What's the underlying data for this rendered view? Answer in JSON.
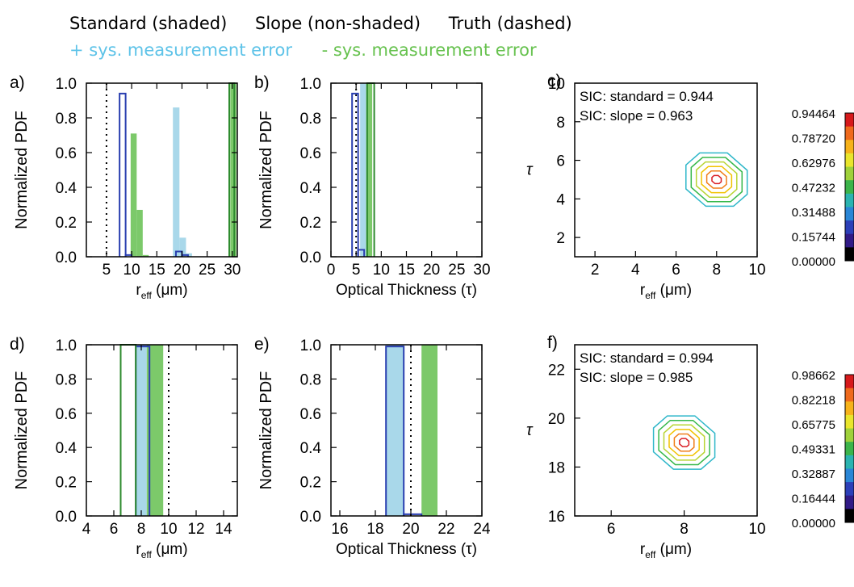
{
  "legend": {
    "standard": "Standard (shaded)",
    "slope": "Slope (non-shaded)",
    "truth": "Truth (dashed)",
    "plus_error": "+ sys. measurement error",
    "minus_error": "- sys. measurement error"
  },
  "colors": {
    "plus_error": "#a9d8ea",
    "minus_error": "#7cc96a",
    "slope_outline_plus": "#2a3fb0",
    "slope_outline_minus": "#2e8b2e",
    "truth": "#000000"
  },
  "chart_data": [
    {
      "panel": "a)",
      "type": "bar",
      "xlabel": "r_eff (μm)",
      "ylabel": "Normalized PDF",
      "xlim": [
        1,
        31
      ],
      "ylim": [
        0,
        1.0
      ],
      "xticks": [
        5,
        10,
        15,
        20,
        25,
        30
      ],
      "yticks": [
        0.0,
        0.2,
        0.4,
        0.6,
        0.8,
        1.0
      ],
      "ytick_labels": [
        "0.0",
        "0.2",
        "0.4",
        "0.6",
        "0.8",
        "1.0"
      ],
      "truth": 5,
      "series": [
        {
          "name": "+ sys. measurement error",
          "style": "shaded",
          "color": "#a9d8ea",
          "bars": [
            [
              18.2,
              19.5,
              0.86
            ],
            [
              19.5,
              20.8,
              0.11
            ],
            [
              20.8,
              22.0,
              0.02
            ]
          ]
        },
        {
          "name": "- sys. measurement error",
          "style": "shaded",
          "color": "#7cc96a",
          "bars": [
            [
              9.8,
              11.0,
              0.71
            ],
            [
              11.0,
              12.2,
              0.27
            ],
            [
              12.2,
              13.4,
              0.01
            ],
            [
              29.6,
              30.8,
              1.0
            ]
          ]
        },
        {
          "name": "+ sys. measurement error",
          "style": "outline",
          "color": "#2a3fb0",
          "bars": [
            [
              7.6,
              8.8,
              0.94
            ],
            [
              8.8,
              10.0,
              0.01
            ],
            [
              18.8,
              20.0,
              0.03
            ],
            [
              20.0,
              21.2,
              0.01
            ]
          ]
        },
        {
          "name": "- sys. measurement error",
          "style": "outline",
          "color": "#2e8b2e",
          "bars": [
            [
              29.4,
              30.4,
              1.0
            ]
          ]
        }
      ]
    },
    {
      "panel": "b)",
      "type": "bar",
      "xlabel": "Optical Thickness (τ)",
      "ylabel": "Normalized PDF",
      "xlim": [
        0,
        30
      ],
      "ylim": [
        0,
        1.0
      ],
      "xticks": [
        0,
        5,
        10,
        15,
        20,
        25,
        30
      ],
      "yticks": [
        0.0,
        0.2,
        0.4,
        0.6,
        0.8,
        1.0
      ],
      "ytick_labels": [
        "0.0",
        "0.2",
        "0.4",
        "0.6",
        "0.8",
        "1.0"
      ],
      "truth": 5,
      "series": [
        {
          "name": "+ sys. measurement error",
          "style": "shaded",
          "color": "#a9d8ea",
          "bars": [
            [
              5.8,
              7.0,
              1.0
            ]
          ]
        },
        {
          "name": "- sys. measurement error",
          "style": "shaded",
          "color": "#7cc96a",
          "bars": [
            [
              7.0,
              8.2,
              1.0
            ]
          ]
        },
        {
          "name": "+ sys. measurement error",
          "style": "outline",
          "color": "#2a3fb0",
          "bars": [
            [
              4.2,
              5.4,
              0.94
            ],
            [
              5.4,
              6.6,
              0.04
            ]
          ]
        },
        {
          "name": "- sys. measurement error",
          "style": "outline",
          "color": "#2e8b2e",
          "bars": [
            [
              7.2,
              8.6,
              1.0
            ]
          ]
        }
      ]
    },
    {
      "panel": "c)",
      "type": "contour",
      "xlabel": "r_eff (μm)",
      "ylabel": "τ",
      "xlim": [
        1,
        10
      ],
      "ylim": [
        1,
        10
      ],
      "xticks": [
        2,
        4,
        6,
        8,
        10
      ],
      "yticks": [
        2,
        4,
        6,
        8,
        10
      ],
      "center": [
        8,
        5
      ],
      "annotations": [
        "SIC: standard = 0.944",
        "SIC: slope = 0.963"
      ],
      "colorbar": [
        "0.94464",
        "0.78720",
        "0.62976",
        "0.47232",
        "0.31488",
        "0.15744",
        "0.00000"
      ]
    },
    {
      "panel": "d)",
      "type": "bar",
      "xlabel": "r_eff (μm)",
      "ylabel": "Normalized PDF",
      "xlim": [
        4,
        15
      ],
      "ylim": [
        0,
        1.0
      ],
      "xticks": [
        4,
        6,
        8,
        10,
        12,
        14
      ],
      "yticks": [
        0.0,
        0.2,
        0.4,
        0.6,
        0.8,
        1.0
      ],
      "ytick_labels": [
        "0.0",
        "0.2",
        "0.4",
        "0.6",
        "0.8",
        "1.0"
      ],
      "truth": 10,
      "series": [
        {
          "name": "+ sys. measurement error",
          "style": "shaded",
          "color": "#a9d8ea",
          "bars": [
            [
              7.6,
              8.4,
              1.0
            ]
          ]
        },
        {
          "name": "- sys. measurement error",
          "style": "shaded",
          "color": "#7cc96a",
          "bars": [
            [
              8.4,
              9.6,
              1.0
            ]
          ]
        },
        {
          "name": "+ sys. measurement error",
          "style": "outline",
          "color": "#2a3fb0",
          "bars": [
            [
              7.6,
              8.6,
              0.99
            ]
          ]
        },
        {
          "name": "- sys. measurement error",
          "style": "outline",
          "color": "#2e8b2e",
          "bars": [
            [
              6.5,
              7.6,
              1.0
            ]
          ]
        }
      ]
    },
    {
      "panel": "e)",
      "type": "bar",
      "xlabel": "Optical Thickness (τ)",
      "ylabel": "Normalized PDF",
      "xlim": [
        15.5,
        24
      ],
      "ylim": [
        0,
        1.0
      ],
      "xticks": [
        16,
        18,
        20,
        22,
        24
      ],
      "yticks": [
        0.0,
        0.2,
        0.4,
        0.6,
        0.8,
        1.0
      ],
      "ytick_labels": [
        "0.0",
        "0.2",
        "0.4",
        "0.6",
        "0.8",
        "1.0"
      ],
      "truth": 20,
      "series": [
        {
          "name": "+ sys. measurement error",
          "style": "shaded",
          "color": "#a9d8ea",
          "bars": [
            [
              18.6,
              19.6,
              1.0
            ]
          ]
        },
        {
          "name": "- sys. measurement error",
          "style": "shaded",
          "color": "#7cc96a",
          "bars": [
            [
              20.6,
              21.5,
              1.0
            ]
          ]
        },
        {
          "name": "+ sys. measurement error",
          "style": "outline",
          "color": "#2a3fb0",
          "bars": [
            [
              18.6,
              19.6,
              0.99
            ],
            [
              19.6,
              20.6,
              0.01
            ]
          ]
        },
        {
          "name": "- sys. measurement error",
          "style": "outline",
          "color": "#2e8b2e",
          "bars": []
        }
      ]
    },
    {
      "panel": "f)",
      "type": "contour",
      "xlabel": "r_eff (μm)",
      "ylabel": "τ",
      "xlim": [
        5,
        10
      ],
      "ylim": [
        16,
        23
      ],
      "xticks": [
        6,
        8,
        10
      ],
      "yticks": [
        16,
        18,
        20,
        22
      ],
      "center": [
        8,
        19
      ],
      "annotations": [
        "SIC: standard = 0.994",
        "SIC: slope = 0.985"
      ],
      "colorbar": [
        "0.98662",
        "0.82218",
        "0.65775",
        "0.49331",
        "0.32887",
        "0.16444",
        "0.00000"
      ]
    }
  ]
}
